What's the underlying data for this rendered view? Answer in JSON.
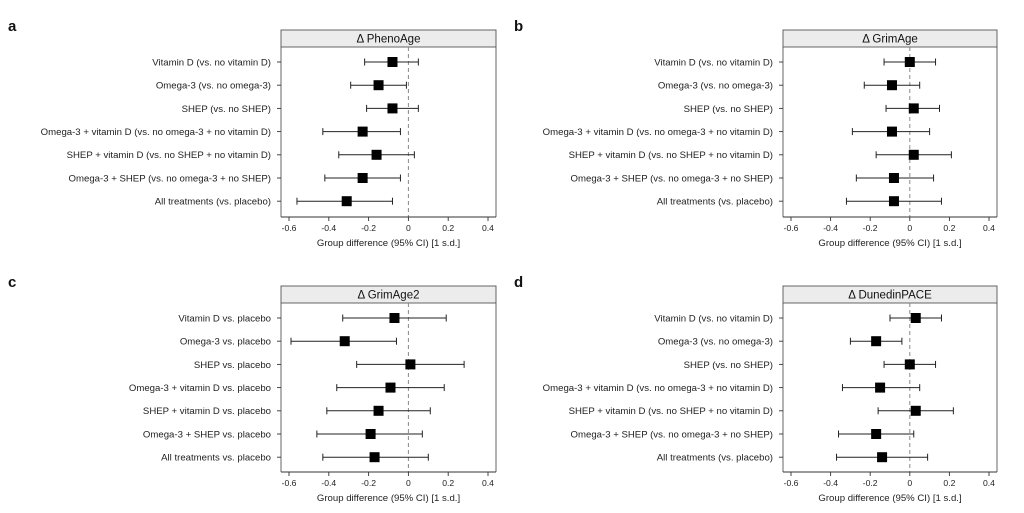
{
  "chart_data": [
    {
      "panel": "a",
      "type": "forest",
      "title": "Δ PhenoAge",
      "xlabel": "Group difference (95% CI) [1 s.d.]",
      "xlim": [
        -0.6,
        0.4
      ],
      "xticks": [
        "-0.6",
        "-0.4",
        "-0.2",
        "0",
        "0.2",
        "0.4"
      ],
      "reference_line": 0,
      "rows": [
        {
          "label": "Vitamin D (vs. no vitamin D)",
          "estimate": -0.08,
          "ci": [
            -0.22,
            0.05
          ]
        },
        {
          "label": "Omega-3 (vs. no omega-3)",
          "estimate": -0.15,
          "ci": [
            -0.29,
            -0.01
          ]
        },
        {
          "label": "SHEP (vs. no SHEP)",
          "estimate": -0.08,
          "ci": [
            -0.21,
            0.05
          ]
        },
        {
          "label": "Omega-3 + vitamin D (vs. no omega-3 + no vitamin D)",
          "estimate": -0.23,
          "ci": [
            -0.43,
            -0.04
          ]
        },
        {
          "label": "SHEP + vitamin D (vs. no SHEP + no vitamin D)",
          "estimate": -0.16,
          "ci": [
            -0.35,
            0.03
          ]
        },
        {
          "label": "Omega-3 + SHEP (vs. no omega-3 + no SHEP)",
          "estimate": -0.23,
          "ci": [
            -0.42,
            -0.04
          ]
        },
        {
          "label": "All treatments (vs. placebo)",
          "estimate": -0.31,
          "ci": [
            -0.56,
            -0.08
          ]
        }
      ]
    },
    {
      "panel": "b",
      "type": "forest",
      "title": "Δ GrimAge",
      "xlabel": "Group difference (95% CI) [1 s.d.]",
      "xlim": [
        -0.6,
        0.4
      ],
      "xticks": [
        "-0.6",
        "-0.4",
        "-0.2",
        "0",
        "0.2",
        "0.4"
      ],
      "reference_line": 0,
      "rows": [
        {
          "label": "Vitamin D (vs. no vitamin D)",
          "estimate": 0.0,
          "ci": [
            -0.13,
            0.13
          ]
        },
        {
          "label": "Omega-3 (vs. no omega-3)",
          "estimate": -0.09,
          "ci": [
            -0.23,
            0.05
          ]
        },
        {
          "label": "SHEP (vs. no SHEP)",
          "estimate": 0.02,
          "ci": [
            -0.12,
            0.15
          ]
        },
        {
          "label": "Omega-3 + vitamin D (vs. no omega-3 + no vitamin D)",
          "estimate": -0.09,
          "ci": [
            -0.29,
            0.1
          ]
        },
        {
          "label": "SHEP + vitamin D (vs. no SHEP + no vitamin D)",
          "estimate": 0.02,
          "ci": [
            -0.17,
            0.21
          ]
        },
        {
          "label": "Omega-3 + SHEP (vs. no omega-3 + no SHEP)",
          "estimate": -0.08,
          "ci": [
            -0.27,
            0.12
          ]
        },
        {
          "label": "All treatments (vs. placebo)",
          "estimate": -0.08,
          "ci": [
            -0.32,
            0.16
          ]
        }
      ]
    },
    {
      "panel": "c",
      "type": "forest",
      "title": "Δ GrimAge2",
      "xlabel": "Group difference (95% CI) [1 s.d.]",
      "xlim": [
        -0.6,
        0.4
      ],
      "xticks": [
        "-0.6",
        "-0.4",
        "-0.2",
        "0",
        "0.2",
        "0.4"
      ],
      "reference_line": 0,
      "rows": [
        {
          "label": "Vitamin D vs. placebo",
          "estimate": -0.07,
          "ci": [
            -0.33,
            0.19
          ]
        },
        {
          "label": "Omega-3 vs. placebo",
          "estimate": -0.32,
          "ci": [
            -0.59,
            -0.06
          ]
        },
        {
          "label": "SHEP vs. placebo",
          "estimate": 0.01,
          "ci": [
            -0.26,
            0.28
          ]
        },
        {
          "label": "Omega-3 + vitamin D vs. placebo",
          "estimate": -0.09,
          "ci": [
            -0.36,
            0.18
          ]
        },
        {
          "label": "SHEP + vitamin D vs. placebo",
          "estimate": -0.15,
          "ci": [
            -0.41,
            0.11
          ]
        },
        {
          "label": "Omega-3 + SHEP vs. placebo",
          "estimate": -0.19,
          "ci": [
            -0.46,
            0.07
          ]
        },
        {
          "label": "All treatments vs. placebo",
          "estimate": -0.17,
          "ci": [
            -0.43,
            0.1
          ]
        }
      ]
    },
    {
      "panel": "d",
      "type": "forest",
      "title": "Δ DunedinPACE",
      "xlabel": "Group difference (95% CI) [1 s.d.]",
      "xlim": [
        -0.6,
        0.4
      ],
      "xticks": [
        "-0.6",
        "-0.4",
        "-0.2",
        "0",
        "0.2",
        "0.4"
      ],
      "reference_line": 0,
      "rows": [
        {
          "label": "Vitamin D (vs. no vitamin D)",
          "estimate": 0.03,
          "ci": [
            -0.1,
            0.16
          ]
        },
        {
          "label": "Omega-3 (vs. no omega-3)",
          "estimate": -0.17,
          "ci": [
            -0.3,
            -0.04
          ]
        },
        {
          "label": "SHEP (vs. no SHEP)",
          "estimate": 0.0,
          "ci": [
            -0.13,
            0.13
          ]
        },
        {
          "label": "Omega-3 + vitamin D (vs. no omega-3 + no vitamin D)",
          "estimate": -0.15,
          "ci": [
            -0.34,
            0.05
          ]
        },
        {
          "label": "SHEP + vitamin D (vs. no SHEP + no vitamin D)",
          "estimate": 0.03,
          "ci": [
            -0.16,
            0.22
          ]
        },
        {
          "label": "Omega-3 + SHEP (vs. no omega-3 + no SHEP)",
          "estimate": -0.17,
          "ci": [
            -0.36,
            0.02
          ]
        },
        {
          "label": "All treatments (vs. placebo)",
          "estimate": -0.14,
          "ci": [
            -0.37,
            0.09
          ]
        }
      ]
    }
  ]
}
